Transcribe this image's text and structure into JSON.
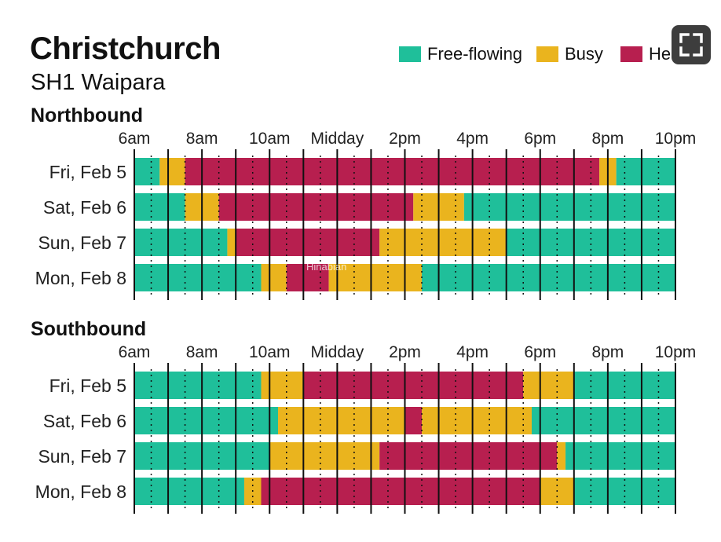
{
  "header": {
    "title": "Christchurch",
    "subtitle": "SH1 Waipara"
  },
  "legend": {
    "items": [
      {
        "label": "Free-flowing",
        "color": "#1fbf9a"
      },
      {
        "label": "Busy",
        "color": "#eab41e"
      },
      {
        "label": "Heavy",
        "color": "#b71f4f"
      }
    ],
    "visible_text": {
      "ff": "Free-flowing",
      "busy": "Busy",
      "heavy": "He"
    }
  },
  "expand_button": {
    "icon": "expand-icon"
  },
  "watermark": {
    "text": "Hinabian"
  },
  "chart_data": {
    "type": "timeline",
    "title": "Christchurch",
    "subtitle": "SH1 Waipara",
    "x_range_hours": [
      6,
      22
    ],
    "tick_labels": [
      "6am",
      "8am",
      "10am",
      "Midday",
      "2pm",
      "4pm",
      "6pm",
      "8pm",
      "10pm"
    ],
    "colors": {
      "free": "#1fbf9a",
      "busy": "#eab41e",
      "heavy": "#b71f4f"
    },
    "panels": [
      {
        "name": "Northbound",
        "rows": [
          {
            "label": "Fri, Feb 5",
            "segments": [
              [
                6,
                6.75,
                "free"
              ],
              [
                6.75,
                7.5,
                "busy"
              ],
              [
                7.5,
                19.75,
                "heavy"
              ],
              [
                19.75,
                20.25,
                "busy"
              ],
              [
                20.25,
                22,
                "free"
              ]
            ]
          },
          {
            "label": "Sat, Feb 6",
            "segments": [
              [
                6,
                7.5,
                "free"
              ],
              [
                7.5,
                8.5,
                "busy"
              ],
              [
                8.5,
                14.25,
                "heavy"
              ],
              [
                14.25,
                15.75,
                "busy"
              ],
              [
                15.75,
                22,
                "free"
              ]
            ]
          },
          {
            "label": "Sun, Feb 7",
            "segments": [
              [
                6,
                8.75,
                "free"
              ],
              [
                8.75,
                9,
                "busy"
              ],
              [
                9,
                13.25,
                "heavy"
              ],
              [
                13.25,
                17,
                "busy"
              ],
              [
                17,
                22,
                "free"
              ]
            ]
          },
          {
            "label": "Mon, Feb 8",
            "segments": [
              [
                6,
                9.75,
                "free"
              ],
              [
                9.75,
                10.5,
                "busy"
              ],
              [
                10.5,
                11.75,
                "heavy"
              ],
              [
                11.75,
                14.5,
                "busy"
              ],
              [
                14.5,
                22,
                "free"
              ]
            ]
          }
        ]
      },
      {
        "name": "Southbound",
        "rows": [
          {
            "label": "Fri, Feb 5",
            "segments": [
              [
                6,
                9.75,
                "free"
              ],
              [
                9.75,
                11,
                "busy"
              ],
              [
                11,
                17.5,
                "heavy"
              ],
              [
                17.5,
                19,
                "busy"
              ],
              [
                19,
                22,
                "free"
              ]
            ]
          },
          {
            "label": "Sat, Feb 6",
            "segments": [
              [
                6,
                10.25,
                "free"
              ],
              [
                10.25,
                14,
                "busy"
              ],
              [
                14,
                14.5,
                "heavy"
              ],
              [
                14.5,
                17.75,
                "busy"
              ],
              [
                17.75,
                22,
                "free"
              ]
            ]
          },
          {
            "label": "Sun, Feb 7",
            "segments": [
              [
                6,
                10,
                "free"
              ],
              [
                10,
                13.25,
                "busy"
              ],
              [
                13.25,
                18.5,
                "heavy"
              ],
              [
                18.5,
                18.75,
                "busy"
              ],
              [
                18.75,
                22,
                "free"
              ]
            ]
          },
          {
            "label": "Mon, Feb 8",
            "segments": [
              [
                6,
                9.25,
                "free"
              ],
              [
                9.25,
                9.75,
                "busy"
              ],
              [
                9.75,
                18,
                "heavy"
              ],
              [
                18,
                19,
                "busy"
              ],
              [
                19,
                22,
                "free"
              ]
            ]
          }
        ]
      }
    ]
  }
}
